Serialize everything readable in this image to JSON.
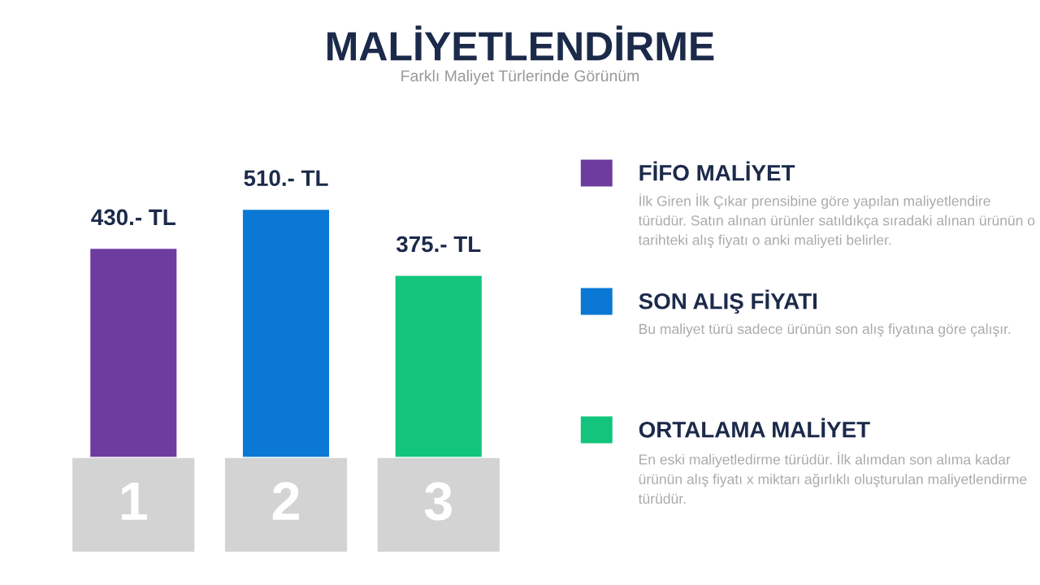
{
  "chart_data": {
    "type": "bar",
    "title": "MALİYETLENDİRME",
    "subtitle": "Farklı Maliyet Türlerinde Görünüm",
    "categories": [
      "1",
      "2",
      "3"
    ],
    "legend": "right",
    "series": [
      {
        "name": "FİFO MALİYET",
        "color": "#6e3c9f",
        "values": [
          430,
          null,
          null
        ],
        "value_labels": [
          "430.- TL",
          null,
          null
        ]
      },
      {
        "name": "SON ALIŞ FİYATI",
        "color": "#0a78d4",
        "values": [
          null,
          510,
          null
        ],
        "value_labels": [
          null,
          "510.- TL",
          null
        ]
      },
      {
        "name": "ORTALAMA MALİYET",
        "color": "#12c47c",
        "values": [
          null,
          null,
          375
        ],
        "value_labels": [
          null,
          null,
          "375.- TL"
        ]
      }
    ],
    "annotations": [
      "İlk Giren İlk Çıkar prensibine göre yapılan maliyetlendire türüdür. Satın alınan ürünler satıldıkça sıradaki alınan ürünün o tarihteki alış fiyatı o anki maliyeti belirler.",
      "Bu maliyet türü sadece ürünün son alış fiyatına göre çalışır.",
      "En eski maliyetledirme türüdür. İlk alımdan son alıma kadar ürünün alış fiyatı x miktarı ağırlıklı oluşturulan maliyetlendirme türüdür."
    ]
  }
}
